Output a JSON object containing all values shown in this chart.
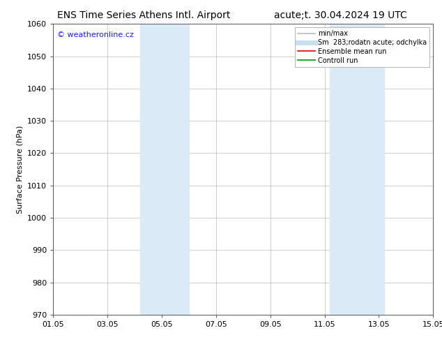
{
  "title_left": "ENS Time Series Athens Intl. Airport",
  "title_right": "acute;t. 30.04.2024 19 UTC",
  "ylabel": "Surface Pressure (hPa)",
  "xlabel": "",
  "ylim": [
    970,
    1060
  ],
  "yticks": [
    970,
    980,
    990,
    1000,
    1010,
    1020,
    1030,
    1040,
    1050,
    1060
  ],
  "xtick_labels": [
    "01.05",
    "03.05",
    "05.05",
    "07.05",
    "09.05",
    "11.05",
    "13.05",
    "15.05"
  ],
  "xtick_positions": [
    0,
    2,
    4,
    6,
    8,
    10,
    12,
    14
  ],
  "xlim": [
    0,
    14
  ],
  "shaded_regions": [
    {
      "xmin": 3.2,
      "xmax": 5.0,
      "color": "#daeaf7"
    },
    {
      "xmin": 10.2,
      "xmax": 12.2,
      "color": "#daeaf7"
    }
  ],
  "watermark_text": "© weatheronline.cz",
  "watermark_color": "#1a1aff",
  "legend_entries": [
    {
      "label": "min/max",
      "color": "#bbbbbb",
      "lw": 1.2
    },
    {
      "label": "Sm  283;rodatn acute; odchylka",
      "color": "#c8dff0",
      "lw": 5
    },
    {
      "label": "Ensemble mean run",
      "color": "#dd0000",
      "lw": 1.2
    },
    {
      "label": "Controll run",
      "color": "#009900",
      "lw": 1.2
    }
  ],
  "background_color": "#ffffff",
  "plot_background_color": "#ffffff",
  "grid_color": "#bbbbbb",
  "title_fontsize": 10,
  "axis_label_fontsize": 8,
  "tick_fontsize": 8,
  "legend_fontsize": 7,
  "watermark_fontsize": 8
}
